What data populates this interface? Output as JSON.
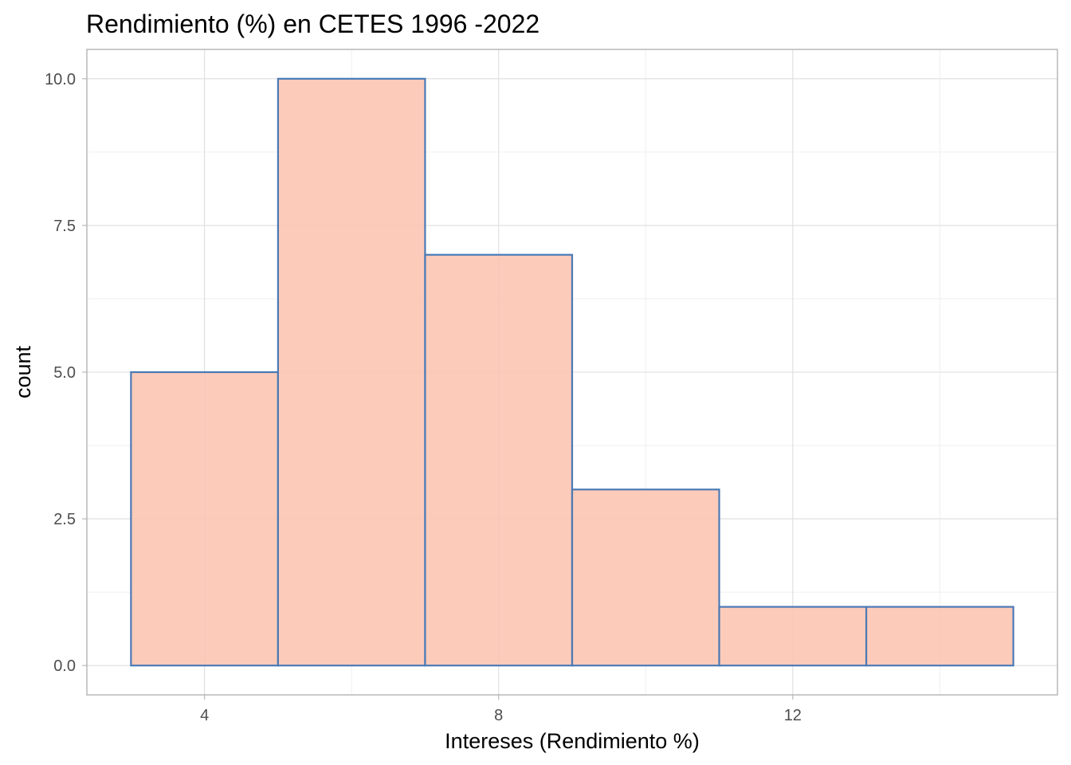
{
  "chart_data": {
    "type": "bar",
    "subtype": "histogram",
    "title": "Rendimiento (%) en CETES 1996 -2022",
    "xlabel": "Intereses (Rendimiento %)",
    "ylabel": "count",
    "bins": [
      {
        "x_start": 3,
        "x_end": 5,
        "count": 5
      },
      {
        "x_start": 5,
        "x_end": 7,
        "count": 10
      },
      {
        "x_start": 7,
        "x_end": 9,
        "count": 7
      },
      {
        "x_start": 9,
        "x_end": 11,
        "count": 3
      },
      {
        "x_start": 11,
        "x_end": 13,
        "count": 1
      },
      {
        "x_start": 13,
        "x_end": 15,
        "count": 1
      }
    ],
    "xlim": [
      2.4,
      15.6
    ],
    "ylim": [
      -0.5,
      10.5
    ],
    "x_ticks": [
      4,
      8,
      12
    ],
    "x_tick_labels": [
      "4",
      "8",
      "12"
    ],
    "x_minor_ticks": [
      6,
      10,
      14
    ],
    "y_ticks": [
      0,
      2.5,
      5,
      7.5,
      10
    ],
    "y_tick_labels": [
      "0.0",
      "2.5",
      "5.0",
      "7.5",
      "10.0"
    ],
    "y_minor_ticks": [
      1.25,
      3.75,
      6.25,
      8.75
    ],
    "fill_color": "#fcc5b3",
    "edge_color": "#4a7ab5",
    "grid": true,
    "legend": "none"
  }
}
